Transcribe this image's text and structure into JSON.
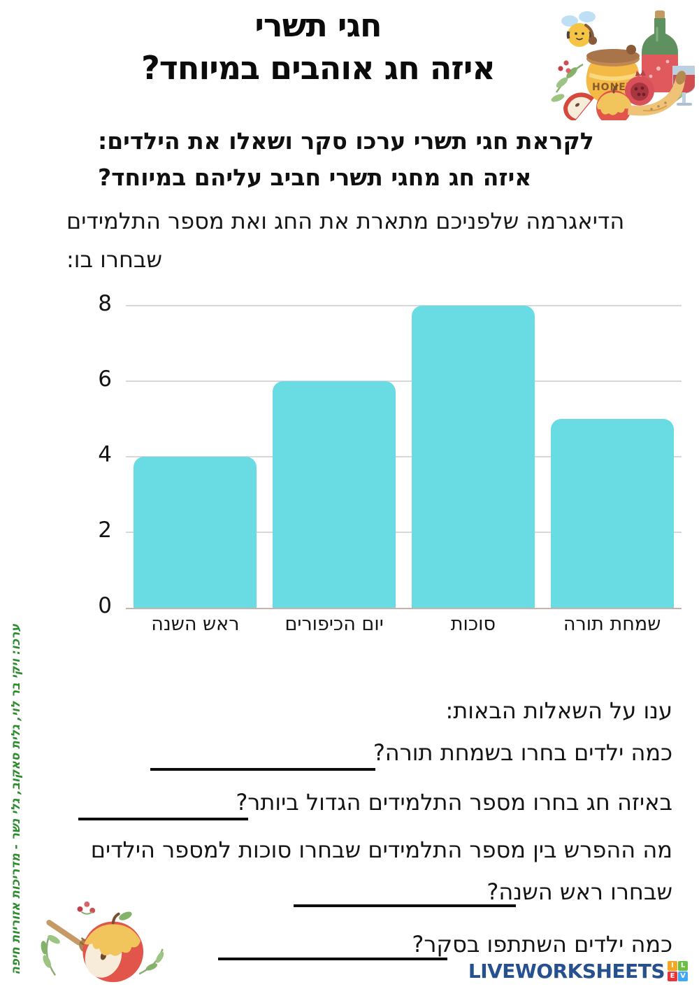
{
  "header": {
    "title_line1": "חגי תשרי",
    "title_line2": "איזה חג אוהבים במיוחד?"
  },
  "intro": {
    "bold_line1": "לקראת חגי תשרי ערכו סקר ושאלו את הילדים:",
    "bold_line2": "איזה חג מחגי תשרי חביב עליהם במיוחד?",
    "line1": "הדיאגרמה שלפניכם מתארת את החג ואת מספר התלמידים",
    "line2": "שבחרו בו:"
  },
  "chart_data": {
    "type": "bar",
    "categories": [
      "ראש השנה",
      "יום הכיפורים",
      "סוכות",
      "שמחת תורה"
    ],
    "values": [
      4,
      6,
      8,
      5
    ],
    "yticks": [
      0,
      2,
      4,
      6,
      8
    ],
    "ylim": [
      0,
      8
    ],
    "bar_color": "#68dce2",
    "gridline_color": "#d8d8d8",
    "grid": true,
    "legend": false,
    "title": "",
    "xlabel": "",
    "ylabel": ""
  },
  "questions": {
    "heading": "ענו על השאלות הבאות:",
    "items": [
      {
        "text": "כמה ילדים בחרו בשמחת תורה?"
      },
      {
        "text": "באיזה חג בחרו מספר התלמידים הגדול ביותר?"
      },
      {
        "text": "מה ההפרש בין מספר התלמידים שבחרו סוכות למספר הילדים",
        "text2": "שבחרו ראש השנה?"
      },
      {
        "text": "כמה ילדים השתתפו בסקר?"
      }
    ]
  },
  "credit": {
    "text": "ערכו: ויקי בר לוי, גלית סאקוב, גלי נשר - מדריכות אזוריות חיפה",
    "color": "#2e8b2e"
  },
  "decor": {
    "honey_jar_label": "HONEY"
  },
  "footer": {
    "logo_text": "LIVEWORKSHEETS",
    "logo_text_color": "#27508f",
    "logo_squares": [
      {
        "letter": "L",
        "color": "#6cbe45"
      },
      {
        "letter": "I",
        "color": "#f5a623"
      },
      {
        "letter": "V",
        "color": "#3fa9f5"
      },
      {
        "letter": "E",
        "color": "#ee3338"
      }
    ]
  }
}
